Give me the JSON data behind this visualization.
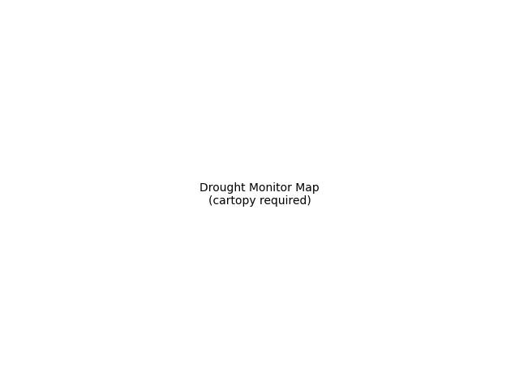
{
  "drought_colors": {
    "none": [
      255,
      255,
      255
    ],
    "D0": [
      255,
      255,
      0
    ],
    "D1": [
      252,
      211,
      127
    ],
    "D2": [
      255,
      170,
      0
    ],
    "D3": [
      230,
      0,
      0
    ],
    "D4": [
      115,
      0,
      0
    ]
  },
  "river_color": "#4da6ff",
  "border_color": "#000000",
  "background": "#ffffff",
  "fig_width": 6.4,
  "fig_height": 4.8,
  "dpi": 100,
  "lon_min": -117.5,
  "lon_max": -95.0,
  "lat_min": 36.0,
  "lat_max": 49.5
}
